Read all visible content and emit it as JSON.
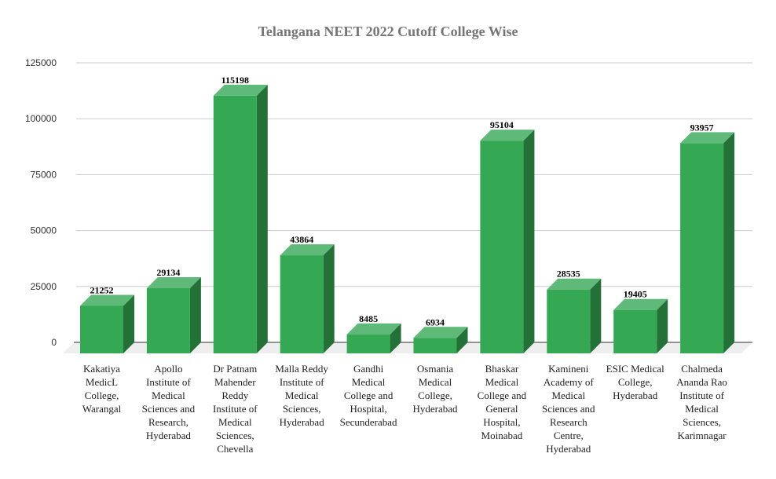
{
  "chart_data": {
    "type": "bar",
    "style": "3d-column",
    "title": "Telangana NEET 2022 Cutoff College Wise",
    "xlabel": "",
    "ylabel": "",
    "ylim": [
      0,
      125000
    ],
    "yticks": [
      0,
      25000,
      50000,
      75000,
      100000,
      125000
    ],
    "grid": true,
    "legend": "none",
    "bar_color": "#34a853",
    "categories": [
      "Kakatiya MedicL College, Warangal",
      "Apollo Institute of Medical Sciences and Research, Hyderabad",
      "Dr Patnam Mahender Reddy Institute of Medical Sciences, Chevella",
      "Malla Reddy Institute of Medical Sciences, Hyderabad",
      "Gandhi Medical College and Hospital, Secunderabad",
      "Osmania Medical College, Hyderabad",
      "Bhaskar Medical College and General Hospital, Moinabad",
      "Kamineni Academy of Medical Sciences and Research Centre, Hyderabad",
      "ESIC Medical College, Hyderabad",
      "Chalmeda Ananda Rao Institute of Medical Sciences, Karimnagar"
    ],
    "category_lines": [
      "Kakatiya\nMedicL\nCollege,\nWarangal",
      "Apollo\nInstitute of\nMedical\nSciences and\nResearch,\nHyderabad",
      "Dr Patnam\nMahender\nReddy\nInstitute of\nMedical\nSciences,\nChevella",
      "Malla Reddy\nInstitute of\nMedical\nSciences,\nHyderabad",
      "Gandhi\nMedical\nCollege and\nHospital,\nSecunderabad",
      "Osmania\nMedical\nCollege,\nHyderabad",
      "Bhaskar\nMedical\nCollege and\nGeneral\nHospital,\nMoinabad",
      "Kamineni\nAcademy of\nMedical\nSciences and\nResearch\nCentre,\nHyderabad",
      "ESIC Medical\nCollege,\nHyderabad",
      "Chalmeda\nAnanda Rao\nInstitute of\nMedical\nSciences,\nKarimnagar"
    ],
    "values": [
      21252,
      29134,
      115198,
      43864,
      8485,
      6934,
      95104,
      28535,
      19405,
      93957
    ]
  }
}
